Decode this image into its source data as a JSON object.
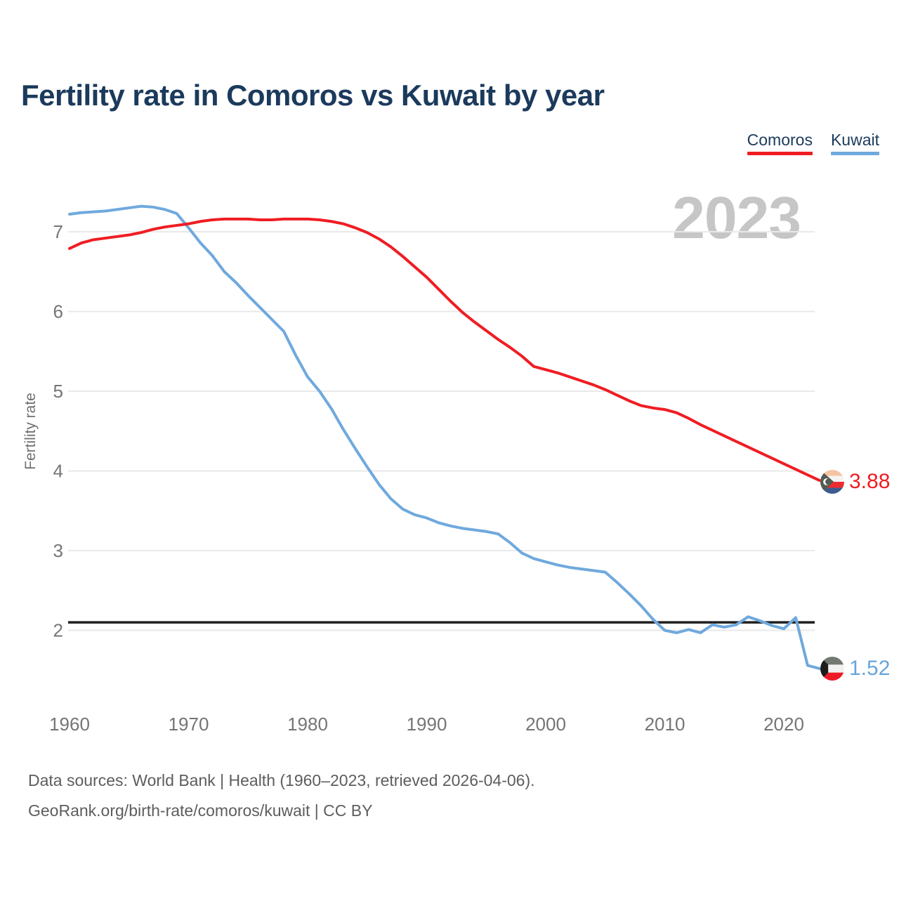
{
  "title": "Fertility rate in Comoros vs Kuwait by year",
  "watermark": "2023",
  "legend": [
    {
      "label": "Comoros",
      "color": "#ef1d23"
    },
    {
      "label": "Kuwait",
      "color": "#6fa9dd"
    }
  ],
  "y_axis": {
    "label": "Fertility rate",
    "ticks": [
      7,
      6,
      5,
      4,
      3,
      2
    ]
  },
  "x_axis": {
    "ticks": [
      1960,
      1970,
      1980,
      1990,
      2000,
      2010,
      2020
    ]
  },
  "end_labels": [
    {
      "series": "Comoros",
      "value": "3.88",
      "color": "#ef1d23",
      "flag": "comoros-flag-icon"
    },
    {
      "series": "Kuwait",
      "value": "1.52",
      "color": "#68a4db",
      "flag": "kuwait-flag-icon"
    }
  ],
  "source": {
    "line1": "Data sources: World Bank | Health (1960–2023, retrieved 2026-04-06).",
    "line2": "GeoRank.org/birth-rate/comoros/kuwait | CC BY"
  },
  "colors": {
    "title": "#1b3a5c",
    "grid": "#e9e9e9",
    "axis_text": "#757575",
    "reference_line": "#1f1f1f",
    "watermark": "#c6c6c6"
  },
  "chart_data": {
    "type": "line",
    "title": "Fertility rate in Comoros vs Kuwait by year",
    "xlabel": "",
    "ylabel": "Fertility rate",
    "xlim": [
      1960,
      2023
    ],
    "ylim": [
      1.3,
      7.6
    ],
    "grid": "horizontal",
    "legend_position": "top-right",
    "reference_line": 2.1,
    "x": [
      1960,
      1961,
      1962,
      1963,
      1964,
      1965,
      1966,
      1967,
      1968,
      1969,
      1970,
      1971,
      1972,
      1973,
      1974,
      1975,
      1976,
      1977,
      1978,
      1979,
      1980,
      1981,
      1982,
      1983,
      1984,
      1985,
      1986,
      1987,
      1988,
      1989,
      1990,
      1991,
      1992,
      1993,
      1994,
      1995,
      1996,
      1997,
      1998,
      1999,
      2000,
      2001,
      2002,
      2003,
      2004,
      2005,
      2006,
      2007,
      2008,
      2009,
      2010,
      2011,
      2012,
      2013,
      2014,
      2015,
      2016,
      2017,
      2018,
      2019,
      2020,
      2021,
      2022,
      2023
    ],
    "series": [
      {
        "name": "Comoros",
        "color": "#ef1d23",
        "values": [
          6.79,
          6.86,
          6.9,
          6.92,
          6.94,
          6.96,
          6.99,
          7.03,
          7.06,
          7.08,
          7.1,
          7.13,
          7.15,
          7.16,
          7.16,
          7.16,
          7.15,
          7.15,
          7.16,
          7.16,
          7.16,
          7.15,
          7.13,
          7.1,
          7.05,
          6.99,
          6.91,
          6.81,
          6.69,
          6.56,
          6.43,
          6.28,
          6.13,
          5.99,
          5.87,
          5.76,
          5.65,
          5.55,
          5.44,
          5.31,
          5.27,
          5.23,
          5.18,
          5.13,
          5.08,
          5.02,
          4.95,
          4.88,
          4.82,
          4.79,
          4.77,
          4.73,
          4.66,
          4.58,
          4.51,
          4.44,
          4.37,
          4.3,
          4.23,
          4.16,
          4.09,
          4.02,
          3.95,
          3.88
        ]
      },
      {
        "name": "Kuwait",
        "color": "#6fa9dd",
        "values": [
          7.22,
          7.24,
          7.25,
          7.26,
          7.28,
          7.3,
          7.32,
          7.31,
          7.28,
          7.23,
          7.05,
          6.86,
          6.7,
          6.5,
          6.36,
          6.2,
          6.05,
          5.9,
          5.75,
          5.45,
          5.18,
          5.0,
          4.78,
          4.52,
          4.28,
          4.05,
          3.83,
          3.65,
          3.52,
          3.45,
          3.41,
          3.35,
          3.31,
          3.28,
          3.26,
          3.24,
          3.21,
          3.1,
          2.97,
          2.9,
          2.86,
          2.82,
          2.79,
          2.77,
          2.75,
          2.73,
          2.6,
          2.46,
          2.31,
          2.14,
          2.0,
          1.97,
          2.01,
          1.97,
          2.07,
          2.04,
          2.07,
          2.17,
          2.12,
          2.06,
          2.02,
          2.16,
          1.56,
          1.52
        ]
      }
    ]
  }
}
